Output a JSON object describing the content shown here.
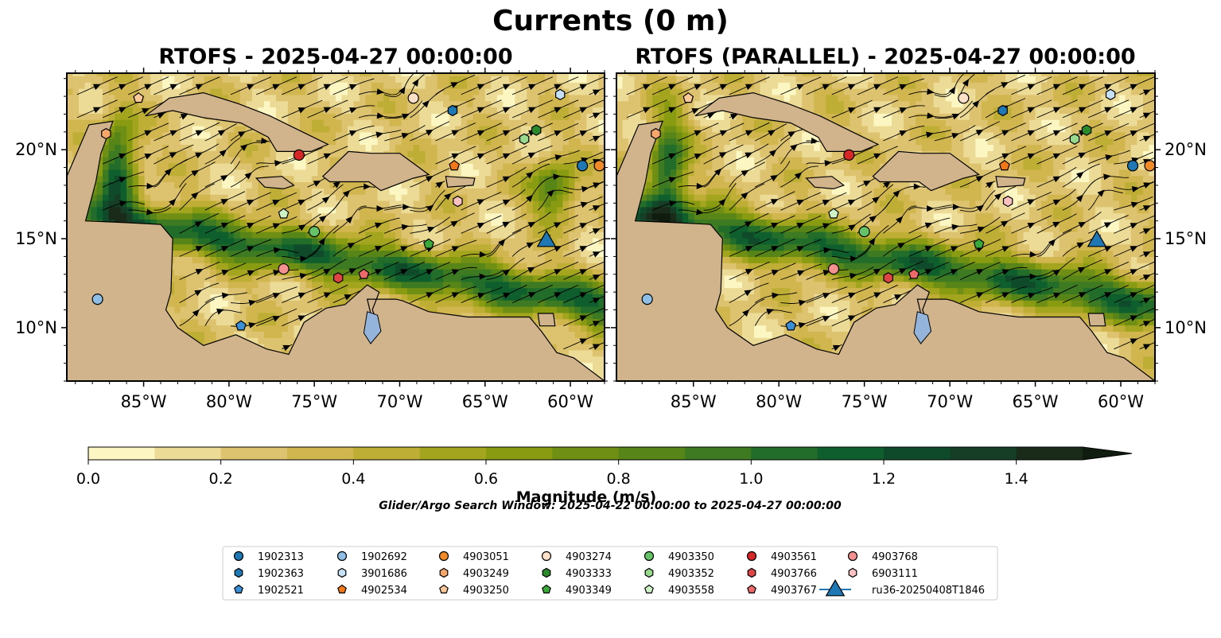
{
  "figure": {
    "suptitle": "Currents (0 m)",
    "panel_titles": [
      "RTOFS - 2025-04-27 00:00:00",
      "RTOFS (PARALLEL) - 2025-04-27 00:00:00"
    ],
    "colorbar_label": "Magnitude (m/s)",
    "search_window": "Glider/Argo Search Window: 2025-04-22 00:00:00 to 2025-04-27 00:00:00"
  },
  "chart_data": {
    "type": "heatmap",
    "variable": "Surface current magnitude with streamlines",
    "lon_range": [
      -89.5,
      -58
    ],
    "lat_range": [
      7,
      24.3
    ],
    "x_ticks": [
      "85°W",
      "80°W",
      "75°W",
      "70°W",
      "65°W",
      "60°W"
    ],
    "x_tick_values": [
      -85,
      -80,
      -75,
      -70,
      -65,
      -60
    ],
    "y_ticks": [
      "10°N",
      "15°N",
      "20°N"
    ],
    "y_tick_values": [
      10,
      15,
      20
    ],
    "colorbar": {
      "min": 0,
      "max": 1.5,
      "step": 0.1,
      "extend": "max",
      "ticks": [
        "0.0",
        "0.2",
        "0.4",
        "0.6",
        "0.8",
        "1.0",
        "1.2",
        "1.4"
      ],
      "colors": [
        "#fcf6c2",
        "#ecdb96",
        "#ddc26f",
        "#d1b64f",
        "#bfae35",
        "#a4a51f",
        "#889b11",
        "#6f8f14",
        "#588517",
        "#3d7a22",
        "#236d2a",
        "#0f5f2e",
        "#0f4a2a",
        "#163d25",
        "#1a2b1a",
        "#101c10"
      ]
    },
    "legend": [
      {
        "id": "1902313",
        "marker": "circle",
        "color": "#1f77b4"
      },
      {
        "id": "1902363",
        "marker": "hexagon",
        "color": "#1f77b4"
      },
      {
        "id": "1902521",
        "marker": "pentagon",
        "color": "#3a8fd6"
      },
      {
        "id": "1902692",
        "marker": "circle",
        "color": "#8fbfe6"
      },
      {
        "id": "3901686",
        "marker": "hexagon",
        "color": "#c6e0f5"
      },
      {
        "id": "4902534",
        "marker": "pentagon",
        "color": "#f07818"
      },
      {
        "id": "4903051",
        "marker": "circle",
        "color": "#f08a28"
      },
      {
        "id": "4903249",
        "marker": "hexagon",
        "color": "#f5a66a"
      },
      {
        "id": "4903250",
        "marker": "pentagon",
        "color": "#fbc99a"
      },
      {
        "id": "4903274",
        "marker": "circle",
        "color": "#fde0c8"
      },
      {
        "id": "4903333",
        "marker": "hexagon",
        "color": "#2a8a2a"
      },
      {
        "id": "4903349",
        "marker": "pentagon",
        "color": "#3aa83a"
      },
      {
        "id": "4903350",
        "marker": "circle",
        "color": "#66c266"
      },
      {
        "id": "4903352",
        "marker": "hexagon",
        "color": "#98d98e"
      },
      {
        "id": "4903558",
        "marker": "pentagon",
        "color": "#cdf2c6"
      },
      {
        "id": "4903561",
        "marker": "circle",
        "color": "#d62728"
      },
      {
        "id": "4903766",
        "marker": "hexagon",
        "color": "#e04445"
      },
      {
        "id": "4903767",
        "marker": "pentagon",
        "color": "#ee6a6a"
      },
      {
        "id": "4903768",
        "marker": "circle",
        "color": "#f59090"
      },
      {
        "id": "6903111",
        "marker": "hexagon",
        "color": "#fbc0c0"
      },
      {
        "id": "ru36-20250408T1846",
        "marker": "triangle",
        "color": "#1f77b4"
      }
    ],
    "platforms": [
      {
        "id": "1902313",
        "lon": -59.3,
        "lat": 19.1
      },
      {
        "id": "1902363",
        "lon": -66.9,
        "lat": 22.2
      },
      {
        "id": "1902521",
        "lon": -79.3,
        "lat": 10.1
      },
      {
        "id": "1902692",
        "lon": -87.7,
        "lat": 11.6
      },
      {
        "id": "3901686",
        "lon": -60.6,
        "lat": 23.1
      },
      {
        "id": "4902534",
        "lon": -66.8,
        "lat": 19.1
      },
      {
        "id": "4903051",
        "lon": -58.3,
        "lat": 19.1
      },
      {
        "id": "4903249",
        "lon": -87.2,
        "lat": 20.9
      },
      {
        "id": "4903250",
        "lon": -85.3,
        "lat": 22.9
      },
      {
        "id": "4903274",
        "lon": -69.2,
        "lat": 22.9
      },
      {
        "id": "4903333",
        "lon": -62.0,
        "lat": 21.1
      },
      {
        "id": "4903349",
        "lon": -68.3,
        "lat": 14.7
      },
      {
        "id": "4903350",
        "lon": -75.0,
        "lat": 15.4
      },
      {
        "id": "4903352",
        "lon": -62.7,
        "lat": 20.6
      },
      {
        "id": "4903558",
        "lon": -76.8,
        "lat": 16.4
      },
      {
        "id": "4903561",
        "lon": -75.9,
        "lat": 19.7
      },
      {
        "id": "4903766",
        "lon": -73.6,
        "lat": 12.8
      },
      {
        "id": "4903767",
        "lon": -72.1,
        "lat": 13.0
      },
      {
        "id": "4903768",
        "lon": -76.8,
        "lat": 13.3
      },
      {
        "id": "6903111",
        "lon": -66.6,
        "lat": 17.1
      },
      {
        "id": "ru36-20250408T1846",
        "lon": -61.4,
        "lat": 15.0
      }
    ],
    "grid": false
  }
}
